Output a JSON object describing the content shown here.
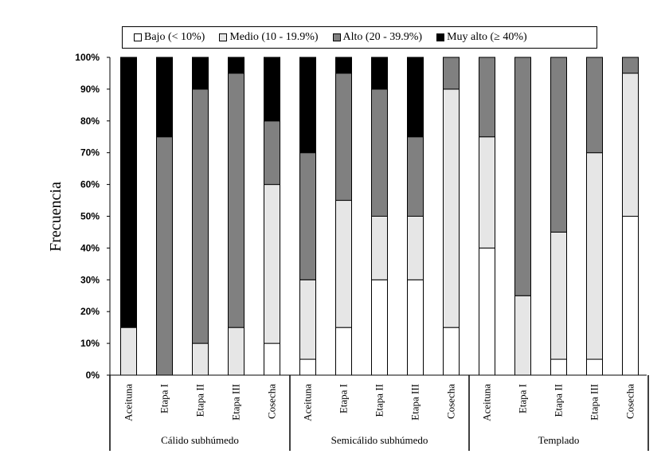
{
  "chart_data": {
    "type": "bar",
    "stacked": true,
    "ylabel": "Frecuencia",
    "ylim": [
      0,
      100
    ],
    "yticks": [
      "0%",
      "10%",
      "20%",
      "30%",
      "40%",
      "50%",
      "60%",
      "70%",
      "80%",
      "90%",
      "100%"
    ],
    "groups": [
      {
        "label": "Cálido subhúmedo",
        "categories": [
          "Aceituna",
          "Etapa I",
          "Etapa II",
          "Etapa III",
          "Cosecha"
        ]
      },
      {
        "label": "Semicálido subhúmedo",
        "categories": [
          "Aceituna",
          "Etapa I",
          "Etapa II",
          "Etapa III",
          "Cosecha"
        ]
      },
      {
        "label": "Templado",
        "categories": [
          "Aceituna",
          "Etapa I",
          "Etapa II",
          "Etapa III",
          "Cosecha"
        ]
      }
    ],
    "series": [
      {
        "name": "Bajo (< 10%)",
        "color": "#ffffff",
        "values": [
          0,
          0,
          0,
          0,
          10,
          5,
          15,
          30,
          30,
          15,
          40,
          0,
          5,
          5,
          50
        ]
      },
      {
        "name": "Medio (10 - 19.9%)",
        "color": "#e6e6e6",
        "values": [
          15,
          0,
          10,
          15,
          50,
          25,
          40,
          20,
          20,
          75,
          35,
          25,
          40,
          65,
          45
        ]
      },
      {
        "name": "Alto (20 - 39.9%)",
        "color": "#808080",
        "values": [
          0,
          75,
          80,
          80,
          20,
          40,
          40,
          40,
          25,
          10,
          25,
          75,
          55,
          30,
          5
        ]
      },
      {
        "name": "Muy alto (≥ 40%)",
        "color": "#000000",
        "values": [
          85,
          25,
          10,
          5,
          20,
          30,
          5,
          10,
          25,
          0,
          0,
          0,
          0,
          0,
          0
        ]
      }
    ]
  }
}
